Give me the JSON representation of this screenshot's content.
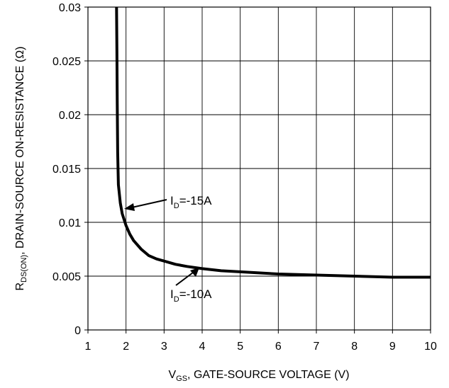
{
  "chart_data": {
    "type": "line",
    "xlabel": {
      "main": "V",
      "sub": "GS",
      "rest": ", GATE-SOURCE VOLTAGE (V)"
    },
    "ylabel": {
      "main": "R",
      "sub": "DS(ON)",
      "rest": ", DRAIN-SOURCE ON-RESISTANCE (Ω)"
    },
    "xlim": [
      1,
      10
    ],
    "ylim": [
      0,
      0.03
    ],
    "x_ticks": [
      "1",
      "2",
      "3",
      "4",
      "5",
      "6",
      "7",
      "8",
      "9",
      "10"
    ],
    "x_tick_values": [
      1,
      2,
      3,
      4,
      5,
      6,
      7,
      8,
      9,
      10
    ],
    "y_ticks": [
      "0",
      "0.005",
      "0.01",
      "0.015",
      "0.02",
      "0.025",
      "0.03"
    ],
    "y_tick_values": [
      0,
      0.005,
      0.01,
      0.015,
      0.02,
      0.025,
      0.03
    ],
    "grid": true,
    "series": [
      {
        "x": [
          1.75,
          1.76,
          1.77,
          1.78,
          1.8,
          1.85,
          1.9,
          2.0,
          2.1,
          2.2,
          2.4,
          2.6,
          2.8,
          3.0,
          3.3,
          3.6,
          4.0,
          4.5,
          5.0,
          6.0,
          7.0,
          8.0,
          9.0,
          10.0
        ],
        "y": [
          0.03,
          0.026,
          0.021,
          0.0165,
          0.0135,
          0.0118,
          0.0108,
          0.0097,
          0.0089,
          0.0083,
          0.0075,
          0.0069,
          0.0066,
          0.0064,
          0.0061,
          0.0059,
          0.0057,
          0.0055,
          0.0054,
          0.0052,
          0.0051,
          0.005,
          0.0049,
          0.0049
        ]
      }
    ],
    "annotations": [
      {
        "main": "I",
        "sub": "D",
        "rest": "=-15A"
      },
      {
        "main": "I",
        "sub": "D",
        "rest": "=-10A"
      }
    ]
  }
}
